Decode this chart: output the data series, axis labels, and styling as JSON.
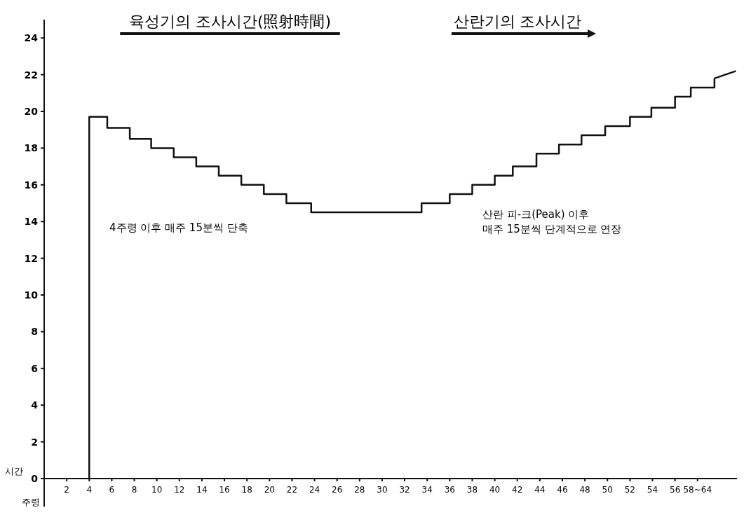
{
  "chart_data": {
    "type": "step",
    "xlabel": "주령",
    "ylabel": "시간",
    "xlim": [
      0,
      61.5
    ],
    "ylim": [
      0,
      25
    ],
    "xticks": [
      2,
      4,
      6,
      8,
      10,
      12,
      14,
      16,
      18,
      20,
      22,
      24,
      26,
      28,
      30,
      32,
      34,
      36,
      38,
      40,
      42,
      44,
      46,
      48,
      50,
      52,
      54,
      56,
      {
        "value": 58,
        "label": "58~64"
      }
    ],
    "yticks": [
      0,
      2,
      4,
      6,
      8,
      10,
      12,
      14,
      16,
      18,
      20,
      22,
      24
    ],
    "series": [
      {
        "color": "#111111",
        "x": [
          4,
          4,
          5.6,
          7.6,
          9.5,
          11.5,
          13.5,
          15.5,
          17.5,
          19.5,
          21.5,
          23.7,
          33.5,
          36,
          38,
          40,
          41.6,
          43.7,
          45.7,
          47.7,
          49.8,
          52,
          53.9,
          56,
          57.4,
          59.5
        ],
        "values": [
          0,
          19.7,
          19.1,
          18.5,
          18.0,
          17.5,
          17.0,
          16.5,
          16.0,
          15.5,
          15.0,
          14.5,
          15.0,
          15.5,
          16.0,
          16.5,
          17.0,
          17.7,
          18.2,
          18.7,
          19.2,
          19.7,
          20.2,
          20.8,
          21.3,
          21.8
        ]
      },
      {
        "type": "line",
        "color": "#111111",
        "x": [
          59.5,
          61.4
        ],
        "values": [
          21.8,
          22.2
        ]
      }
    ],
    "annotations": [
      "육성기의 조사시간(照射時間)",
      "산란기의 조사시간",
      "4주령 이후 매주 15분씩 단축",
      "산란 피-크(Peak) 이후\n매주 15분씩 단계적으로 연장"
    ]
  }
}
